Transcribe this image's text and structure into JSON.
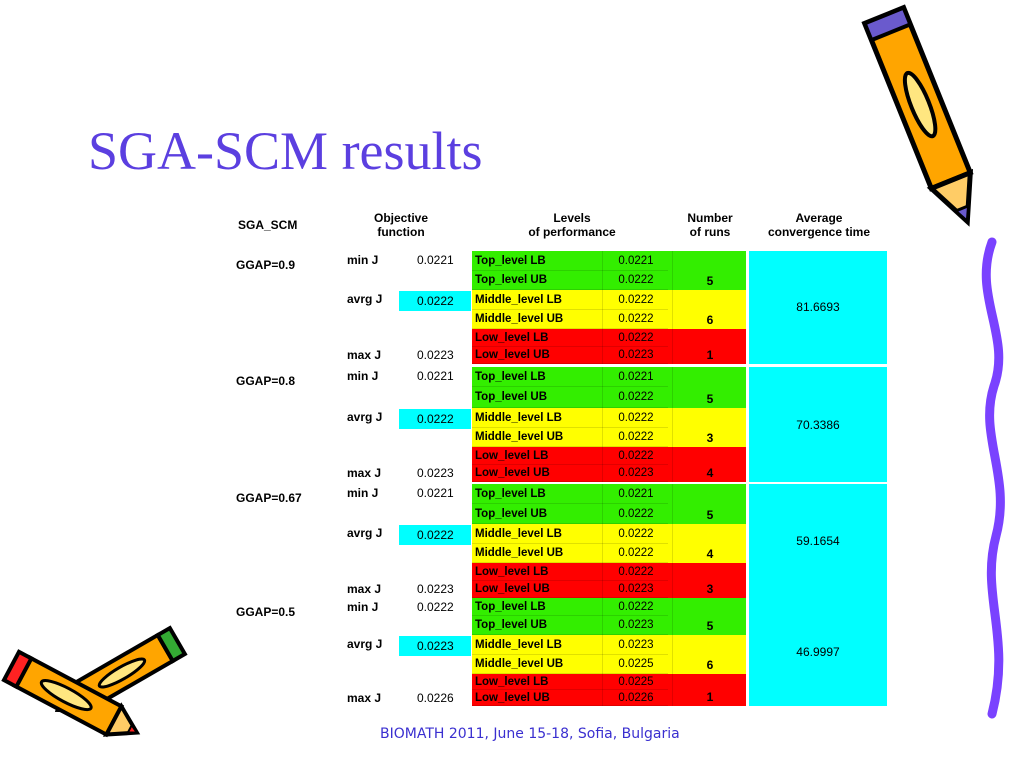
{
  "title": "SGA-SCM results",
  "footer": "BIOMATH 2011, June 15-18, Sofia, Bulgaria",
  "headers": {
    "sga_scm": "SGA_SCM",
    "objective_line1": "Objective",
    "objective_line2": "function",
    "levels_line1": "Levels",
    "levels_line2": "of performance",
    "runs_line1": "Number",
    "runs_line2": "of runs",
    "avg_line1": "Average",
    "avg_line2": "convergence time"
  },
  "groups": [
    {
      "ggap": "GGAP=0.9",
      "min_label": "min J",
      "min_value": "0.0221",
      "avrg_label": "avrg J",
      "avrg_value": "0.0222",
      "max_label": "max J",
      "max_value": "0.0223",
      "levels": [
        {
          "name": "Top_level LB",
          "value": "0.0221"
        },
        {
          "name": "Top_level UB",
          "value": "0.0222"
        },
        {
          "name": "Middle_level LB",
          "value": "0.0222"
        },
        {
          "name": "Middle_level UB",
          "value": "0.0222"
        },
        {
          "name": "Low_level LB",
          "value": "0.0222"
        },
        {
          "name": "Low_level UB",
          "value": "0.0223"
        }
      ],
      "runs": [
        "5",
        "6",
        "1"
      ],
      "avg_time": "81.6693"
    },
    {
      "ggap": "GGAP=0.8",
      "min_label": "min J",
      "min_value": "0.0221",
      "avrg_label": "avrg J",
      "avrg_value": "0.0222",
      "max_label": "max J",
      "max_value": "0.0223",
      "levels": [
        {
          "name": "Top_level LB",
          "value": "0.0221"
        },
        {
          "name": "Top_level UB",
          "value": "0.0222"
        },
        {
          "name": "Middle_level LB",
          "value": "0.0222"
        },
        {
          "name": "Middle_level UB",
          "value": "0.0222"
        },
        {
          "name": "Low_level LB",
          "value": "0.0222"
        },
        {
          "name": "Low_level UB",
          "value": "0.0223"
        }
      ],
      "runs": [
        "5",
        "3",
        "4"
      ],
      "avg_time": "70.3386"
    },
    {
      "ggap": "GGAP=0.67",
      "min_label": "min J",
      "min_value": "0.0221",
      "avrg_label": "avrg J",
      "avrg_value": "0.0222",
      "max_label": "max J",
      "max_value": "0.0223",
      "levels": [
        {
          "name": "Top_level LB",
          "value": "0.0221"
        },
        {
          "name": "Top_level UB",
          "value": "0.0222"
        },
        {
          "name": "Middle_level LB",
          "value": "0.0222"
        },
        {
          "name": "Middle_level UB",
          "value": "0.0222"
        },
        {
          "name": "Low_level LB",
          "value": "0.0222"
        },
        {
          "name": "Low_level UB",
          "value": "0.0223"
        }
      ],
      "runs": [
        "5",
        "4",
        "3"
      ],
      "avg_time": "59.1654"
    },
    {
      "ggap": "GGAP=0.5",
      "min_label": "min J",
      "min_value": "0.0222",
      "avrg_label": "avrg J",
      "avrg_value": "0.0223",
      "max_label": "max J",
      "max_value": "0.0226",
      "levels": [
        {
          "name": "Top_level LB",
          "value": "0.0222"
        },
        {
          "name": "Top_level UB",
          "value": "0.0223"
        },
        {
          "name": "Middle_level LB",
          "value": "0.0223"
        },
        {
          "name": "Middle_level UB",
          "value": "0.0225"
        },
        {
          "name": "Low_level LB",
          "value": "0.0225"
        },
        {
          "name": "Low_level UB",
          "value": "0.0226"
        }
      ],
      "runs": [
        "5",
        "6",
        "1"
      ],
      "avg_time": "46.9997"
    }
  ],
  "colors": {
    "top": "#33ee00",
    "middle": "#ffff00",
    "low": "#ff0000",
    "avg": "#00ffff",
    "title": "#5b3fe0"
  },
  "decorations": [
    "pencil-icon",
    "pencil-icon",
    "pencil-icon"
  ]
}
